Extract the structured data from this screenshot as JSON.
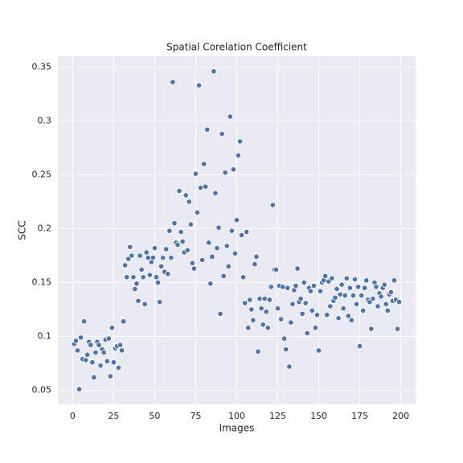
{
  "chart_data": {
    "type": "scatter",
    "title": "Spatial Corelation Coefficient",
    "xlabel": "Images",
    "ylabel": "SCC",
    "color": "#4c72b0",
    "grid": true,
    "xlim": [
      -9,
      209
    ],
    "ylim": [
      0.037,
      0.36
    ],
    "xticks": [
      0,
      25,
      50,
      75,
      100,
      125,
      150,
      175,
      200
    ],
    "yticks": [
      0.05,
      0.1,
      0.15,
      0.2,
      0.25,
      0.3,
      0.35
    ],
    "x": [
      1,
      2,
      3,
      4,
      5,
      6,
      7,
      8,
      9,
      10,
      11,
      12,
      13,
      14,
      15,
      16,
      17,
      18,
      19,
      20,
      21,
      22,
      23,
      24,
      25,
      26,
      27,
      28,
      29,
      30,
      31,
      32,
      33,
      34,
      35,
      36,
      37,
      38,
      39,
      40,
      41,
      42,
      43,
      44,
      45,
      46,
      47,
      48,
      49,
      50,
      51,
      52,
      53,
      54,
      55,
      56,
      57,
      58,
      59,
      60,
      61,
      62,
      63,
      64,
      65,
      66,
      67,
      68,
      69,
      70,
      71,
      72,
      73,
      74,
      75,
      76,
      77,
      78,
      79,
      80,
      81,
      82,
      83,
      84,
      85,
      86,
      87,
      88,
      89,
      90,
      91,
      92,
      93,
      94,
      95,
      96,
      97,
      98,
      99,
      100,
      101,
      102,
      103,
      104,
      105,
      106,
      107,
      108,
      109,
      110,
      111,
      112,
      113,
      114,
      115,
      116,
      117,
      118,
      119,
      120,
      121,
      122,
      123,
      124,
      125,
      126,
      127,
      128,
      129,
      130,
      131,
      132,
      133,
      134,
      135,
      136,
      137,
      138,
      139,
      140,
      141,
      142,
      143,
      144,
      145,
      146,
      147,
      148,
      149,
      150,
      151,
      152,
      153,
      154,
      155,
      156,
      157,
      158,
      159,
      160,
      161,
      162,
      163,
      164,
      165,
      166,
      167,
      168,
      169,
      170,
      171,
      172,
      173,
      174,
      175,
      176,
      177,
      178,
      179,
      180,
      181,
      182,
      183,
      184,
      185,
      186,
      187,
      188,
      189,
      190,
      191,
      192,
      193,
      194,
      195,
      196,
      197,
      198,
      199
    ],
    "values": [
      0.093,
      0.096,
      0.087,
      0.051,
      0.099,
      0.079,
      0.114,
      0.078,
      0.083,
      0.095,
      0.092,
      0.076,
      0.062,
      0.085,
      0.095,
      0.092,
      0.073,
      0.088,
      0.085,
      0.097,
      0.077,
      0.098,
      0.063,
      0.108,
      0.076,
      0.089,
      0.091,
      0.071,
      0.092,
      0.087,
      0.114,
      0.166,
      0.155,
      0.172,
      0.183,
      0.175,
      0.155,
      0.144,
      0.149,
      0.133,
      0.175,
      0.162,
      0.155,
      0.13,
      0.178,
      0.173,
      0.157,
      0.169,
      0.173,
      0.182,
      0.155,
      0.15,
      0.132,
      0.165,
      0.173,
      0.16,
      0.181,
      0.158,
      0.198,
      0.173,
      0.336,
      0.205,
      0.187,
      0.185,
      0.235,
      0.197,
      0.188,
      0.178,
      0.231,
      0.18,
      0.225,
      0.204,
      0.168,
      0.163,
      0.251,
      0.215,
      0.333,
      0.238,
      0.171,
      0.26,
      0.239,
      0.292,
      0.187,
      0.149,
      0.174,
      0.346,
      0.233,
      0.182,
      0.201,
      0.121,
      0.288,
      0.156,
      0.252,
      0.184,
      0.165,
      0.304,
      0.198,
      0.255,
      0.177,
      0.208,
      0.268,
      0.281,
      0.194,
      0.155,
      0.131,
      0.197,
      0.108,
      0.134,
      0.125,
      0.115,
      0.167,
      0.174,
      0.086,
      0.135,
      0.126,
      0.111,
      0.135,
      0.123,
      0.108,
      0.134,
      0.146,
      0.222,
      0.162,
      0.162,
      0.126,
      0.147,
      0.116,
      0.146,
      0.098,
      0.088,
      0.145,
      0.072,
      0.113,
      0.13,
      0.143,
      0.147,
      0.163,
      0.132,
      0.135,
      0.121,
      0.15,
      0.131,
      0.103,
      0.145,
      0.142,
      0.124,
      0.147,
      0.108,
      0.12,
      0.087,
      0.142,
      0.15,
      0.152,
      0.156,
      0.12,
      0.151,
      0.128,
      0.154,
      0.133,
      0.136,
      0.144,
      0.117,
      0.139,
      0.148,
      0.126,
      0.138,
      0.154,
      0.119,
      0.145,
      0.115,
      0.138,
      0.153,
      0.13,
      0.146,
      0.091,
      0.138,
      0.124,
      0.145,
      0.152,
      0.134,
      0.132,
      0.107,
      0.135,
      0.15,
      0.146,
      0.128,
      0.14,
      0.137,
      0.145,
      0.148,
      0.13,
      0.124,
      0.139,
      0.141,
      0.133,
      0.152,
      0.134,
      0.107,
      0.132
    ]
  }
}
